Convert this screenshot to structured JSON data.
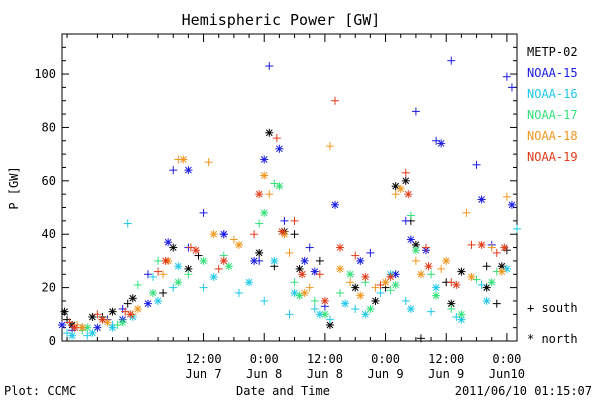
{
  "chart_data": {
    "type": "scatter",
    "title": "Hemispheric Power [GW]",
    "ylabel": "P [GW]",
    "xlabel": "Date and Time",
    "ylim": [
      0,
      115
    ],
    "yticks": [
      0,
      20,
      40,
      60,
      80,
      100
    ],
    "xlim": [
      "2011-06-06 08:00",
      "2011-06-10 02:00"
    ],
    "xticks": [
      {
        "time": "12:00",
        "date": "Jun 7"
      },
      {
        "time": "0:00",
        "date": "Jun 8"
      },
      {
        "time": "12:00",
        "date": "Jun 8"
      },
      {
        "time": "0:00",
        "date": "Jun 9"
      },
      {
        "time": "12:00",
        "date": "Jun 9"
      },
      {
        "time": "0:00",
        "date": "Jun10"
      }
    ],
    "grid": false,
    "legend_position": "right",
    "series": [
      {
        "name": "METP-02",
        "color": "#000000",
        "south": [
          [
            "06-06 09:00",
            8
          ],
          [
            "06-06 12:00",
            5
          ],
          [
            "06-06 16:00",
            9
          ],
          [
            "06-06 21:00",
            14
          ],
          [
            "06-07 04:00",
            18
          ],
          [
            "06-07 11:00",
            32
          ],
          [
            "06-08 02:00",
            28
          ],
          [
            "06-08 06:00",
            40
          ],
          [
            "06-08 11:00",
            30
          ],
          [
            "06-09 00:00",
            20
          ],
          [
            "06-09 05:00",
            45
          ],
          [
            "06-09 07:00",
            1
          ],
          [
            "06-09 12:00",
            22
          ],
          [
            "06-09 20:00",
            28
          ],
          [
            "06-09 22:00",
            14
          ],
          [
            "06-10 00:00",
            34
          ]
        ],
        "north": [
          [
            "06-06 08:30",
            11
          ],
          [
            "06-06 10:00",
            6
          ],
          [
            "06-06 14:00",
            9
          ],
          [
            "06-06 18:00",
            11
          ],
          [
            "06-06 22:00",
            16
          ],
          [
            "06-07 06:00",
            35
          ],
          [
            "06-07 09:00",
            27
          ],
          [
            "06-07 23:00",
            33
          ],
          [
            "06-08 01:00",
            78
          ],
          [
            "06-08 04:00",
            41
          ],
          [
            "06-08 07:00",
            27
          ],
          [
            "06-08 13:00",
            6
          ],
          [
            "06-08 18:00",
            20
          ],
          [
            "06-08 22:00",
            15
          ],
          [
            "06-09 02:00",
            58
          ],
          [
            "06-09 04:00",
            60
          ],
          [
            "06-09 06:00",
            36
          ],
          [
            "06-09 13:00",
            14
          ],
          [
            "06-09 15:00",
            26
          ],
          [
            "06-09 20:00",
            20
          ],
          [
            "06-09 23:00",
            28
          ]
        ]
      },
      {
        "name": "NOAA-15",
        "color": "#1a1ae0",
        "south": [
          [
            "06-06 10:00",
            4
          ],
          [
            "06-06 17:00",
            8
          ],
          [
            "06-06 20:00",
            12
          ],
          [
            "06-07 01:00",
            25
          ],
          [
            "06-07 06:00",
            64
          ],
          [
            "06-07 09:00",
            35
          ],
          [
            "06-07 12:00",
            48
          ],
          [
            "06-07 16:00",
            40
          ],
          [
            "06-07 23:00",
            30
          ],
          [
            "06-08 01:00",
            103
          ],
          [
            "06-08 04:00",
            45
          ],
          [
            "06-08 09:00",
            35
          ],
          [
            "06-08 12:00",
            13
          ],
          [
            "06-08 21:00",
            33
          ],
          [
            "06-09 04:00",
            45
          ],
          [
            "06-09 06:00",
            86
          ],
          [
            "06-09 10:00",
            75
          ],
          [
            "06-09 13:00",
            105
          ],
          [
            "06-09 18:00",
            66
          ],
          [
            "06-09 21:00",
            36
          ],
          [
            "06-10 00:00",
            99
          ],
          [
            "06-10 01:00",
            95
          ]
        ],
        "north": [
          [
            "06-06 08:00",
            6
          ],
          [
            "06-06 15:00",
            5
          ],
          [
            "06-06 20:00",
            8
          ],
          [
            "06-07 01:00",
            14
          ],
          [
            "06-07 05:00",
            37
          ],
          [
            "06-07 09:00",
            64
          ],
          [
            "06-07 16:00",
            40
          ],
          [
            "06-07 22:00",
            30
          ],
          [
            "06-08 00:00",
            68
          ],
          [
            "06-08 03:00",
            72
          ],
          [
            "06-08 08:00",
            30
          ],
          [
            "06-08 10:00",
            26
          ],
          [
            "06-08 14:00",
            51
          ],
          [
            "06-08 19:00",
            30
          ],
          [
            "06-09 02:00",
            25
          ],
          [
            "06-09 05:00",
            38
          ],
          [
            "06-09 08:00",
            34
          ],
          [
            "06-09 11:00",
            74
          ],
          [
            "06-09 19:00",
            53
          ],
          [
            "06-10 01:00",
            51
          ]
        ]
      },
      {
        "name": "NOAA-16",
        "color": "#1fc8e8",
        "south": [
          [
            "06-06 09:00",
            3
          ],
          [
            "06-06 13:00",
            2
          ],
          [
            "06-06 18:00",
            6
          ],
          [
            "06-06 21:00",
            44
          ],
          [
            "06-07 02:00",
            24
          ],
          [
            "06-07 06:00",
            20
          ],
          [
            "06-07 12:00",
            20
          ],
          [
            "06-07 19:00",
            18
          ],
          [
            "06-08 00:00",
            15
          ],
          [
            "06-08 05:00",
            10
          ],
          [
            "06-08 10:00",
            12
          ],
          [
            "06-08 13:00",
            8
          ],
          [
            "06-08 18:00",
            12
          ],
          [
            "06-08 23:00",
            18
          ],
          [
            "06-09 04:00",
            15
          ],
          [
            "06-09 09:00",
            11
          ],
          [
            "06-09 14:00",
            9
          ],
          [
            "06-09 19:00",
            21
          ],
          [
            "06-10 02:00",
            42
          ]
        ],
        "north": [
          [
            "06-06 10:00",
            2
          ],
          [
            "06-06 14:00",
            3
          ],
          [
            "06-06 18:00",
            5
          ],
          [
            "06-06 22:00",
            9
          ],
          [
            "06-07 03:00",
            15
          ],
          [
            "06-07 07:00",
            28
          ],
          [
            "06-07 14:00",
            24
          ],
          [
            "06-07 21:00",
            22
          ],
          [
            "06-08 02:00",
            30
          ],
          [
            "06-08 06:00",
            18
          ],
          [
            "06-08 11:00",
            10
          ],
          [
            "06-08 16:00",
            14
          ],
          [
            "06-08 20:00",
            10
          ],
          [
            "06-09 01:00",
            25
          ],
          [
            "06-09 05:00",
            12
          ],
          [
            "06-09 10:00",
            20
          ],
          [
            "06-09 15:00",
            8
          ],
          [
            "06-09 20:00",
            15
          ],
          [
            "06-10 00:00",
            27
          ]
        ]
      },
      {
        "name": "NOAA-17",
        "color": "#33e07a",
        "south": [
          [
            "06-06 12:00",
            4
          ],
          [
            "06-06 19:00",
            6
          ],
          [
            "06-06 23:00",
            21
          ],
          [
            "06-07 03:00",
            30
          ],
          [
            "06-07 09:00",
            25
          ],
          [
            "06-07 16:00",
            32
          ],
          [
            "06-07 23:00",
            44
          ],
          [
            "06-08 02:00",
            59
          ],
          [
            "06-08 06:00",
            22
          ],
          [
            "06-08 10:00",
            15
          ],
          [
            "06-08 15:00",
            18
          ],
          [
            "06-08 20:00",
            22
          ],
          [
            "06-09 01:00",
            19
          ],
          [
            "06-09 05:00",
            47
          ],
          [
            "06-09 09:00",
            25
          ],
          [
            "06-09 13:00",
            12
          ],
          [
            "06-09 18:00",
            23
          ],
          [
            "06-09 22:00",
            26
          ]
        ],
        "north": [
          [
            "06-06 13:00",
            5
          ],
          [
            "06-06 20:00",
            7
          ],
          [
            "06-07 02:00",
            18
          ],
          [
            "06-07 07:00",
            22
          ],
          [
            "06-07 12:00",
            30
          ],
          [
            "06-07 17:00",
            28
          ],
          [
            "06-08 00:00",
            48
          ],
          [
            "06-08 03:00",
            58
          ],
          [
            "06-08 07:00",
            17
          ],
          [
            "06-08 12:00",
            10
          ],
          [
            "06-08 17:00",
            25
          ],
          [
            "06-08 21:00",
            12
          ],
          [
            "06-09 02:00",
            21
          ],
          [
            "06-09 06:00",
            34
          ],
          [
            "06-09 10:00",
            17
          ],
          [
            "06-09 15:00",
            10
          ],
          [
            "06-09 21:00",
            22
          ]
        ]
      },
      {
        "name": "NOAA-18",
        "color": "#f0961e",
        "south": [
          [
            "06-06 11:00",
            6
          ],
          [
            "06-06 16:00",
            8
          ],
          [
            "06-06 22:00",
            10
          ],
          [
            "06-07 04:00",
            25
          ],
          [
            "06-07 07:00",
            68
          ],
          [
            "06-07 13:00",
            67
          ],
          [
            "06-07 18:00",
            38
          ],
          [
            "06-08 01:00",
            55
          ],
          [
            "06-08 05:00",
            33
          ],
          [
            "06-08 09:00",
            20
          ],
          [
            "06-08 13:00",
            73
          ],
          [
            "06-08 17:00",
            22
          ],
          [
            "06-08 22:00",
            20
          ],
          [
            "06-09 02:00",
            55
          ],
          [
            "06-09 06:00",
            30
          ],
          [
            "06-09 11:00",
            27
          ],
          [
            "06-09 16:00",
            48
          ],
          [
            "06-09 21:00",
            35
          ],
          [
            "06-10 00:00",
            54
          ]
        ],
        "north": [
          [
            "06-06 12:00",
            5
          ],
          [
            "06-06 17:00",
            7
          ],
          [
            "06-06 23:00",
            12
          ],
          [
            "06-07 05:00",
            30
          ],
          [
            "06-07 08:00",
            68
          ],
          [
            "06-07 14:00",
            40
          ],
          [
            "06-07 19:00",
            36
          ],
          [
            "06-08 00:00",
            62
          ],
          [
            "06-08 04:00",
            40
          ],
          [
            "06-08 08:00",
            18
          ],
          [
            "06-08 15:00",
            27
          ],
          [
            "06-08 19:00",
            17
          ],
          [
            "06-09 00:00",
            22
          ],
          [
            "06-09 03:00",
            57
          ],
          [
            "06-09 07:00",
            25
          ],
          [
            "06-09 12:00",
            30
          ],
          [
            "06-09 17:00",
            24
          ],
          [
            "06-09 23:00",
            26
          ]
        ]
      },
      {
        "name": "NOAA-19",
        "color": "#e03a18",
        "south": [
          [
            "06-06 09:30",
            7
          ],
          [
            "06-06 15:00",
            10
          ],
          [
            "06-06 20:30",
            11
          ],
          [
            "06-07 03:00",
            26
          ],
          [
            "06-07 09:30",
            35
          ],
          [
            "06-07 15:00",
            27
          ],
          [
            "06-07 22:00",
            40
          ],
          [
            "06-08 02:30",
            76
          ],
          [
            "06-08 06:00",
            45
          ],
          [
            "06-08 11:00",
            25
          ],
          [
            "06-08 14:00",
            90
          ],
          [
            "06-08 18:00",
            32
          ],
          [
            "06-08 23:00",
            21
          ],
          [
            "06-09 04:00",
            63
          ],
          [
            "06-09 08:00",
            35
          ],
          [
            "06-09 13:00",
            22
          ],
          [
            "06-09 17:00",
            36
          ],
          [
            "06-09 22:00",
            33
          ]
        ],
        "north": [
          [
            "06-06 10:30",
            5
          ],
          [
            "06-06 16:00",
            8
          ],
          [
            "06-06 21:30",
            10
          ],
          [
            "06-07 04:30",
            30
          ],
          [
            "06-07 10:30",
            34
          ],
          [
            "06-07 16:00",
            30
          ],
          [
            "06-07 23:00",
            55
          ],
          [
            "06-08 03:30",
            41
          ],
          [
            "06-08 07:30",
            25
          ],
          [
            "06-08 12:00",
            15
          ],
          [
            "06-08 15:00",
            35
          ],
          [
            "06-08 20:00",
            24
          ],
          [
            "06-09 01:00",
            24
          ],
          [
            "06-09 04:30",
            55
          ],
          [
            "06-09 08:30",
            28
          ],
          [
            "06-09 14:00",
            21
          ],
          [
            "06-09 19:00",
            36
          ],
          [
            "06-09 23:30",
            35
          ]
        ]
      }
    ],
    "markers": {
      "south": "+ south",
      "north": "* north"
    },
    "footer_left": "Plot: CCMC",
    "footer_right": "2011/06/10 01:15:07"
  }
}
